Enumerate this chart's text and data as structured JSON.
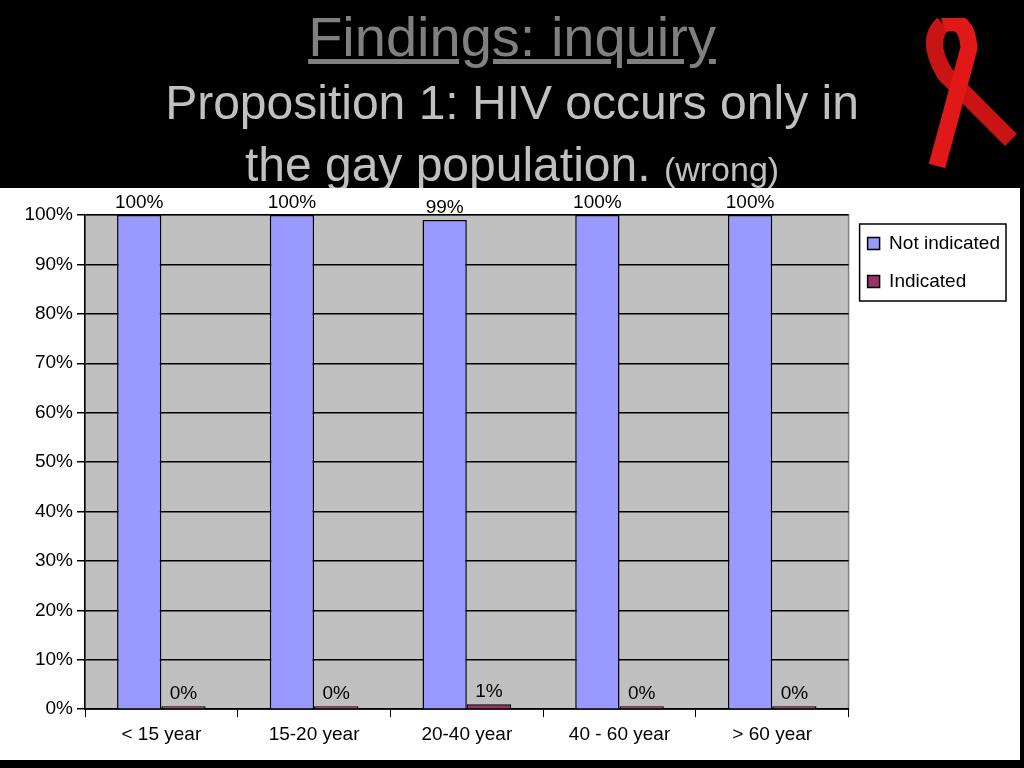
{
  "chart_data": {
    "type": "bar",
    "title": "Findings: inquiry",
    "subtitle": "Proposition 1: HIV occurs only in the gay population.",
    "annotations": [
      "(wrong)"
    ],
    "categories": [
      "< 15 year",
      "15-20 year",
      "20-40 year",
      "40 - 60 year",
      "> 60 year"
    ],
    "series": [
      {
        "name": "Not indicated",
        "color": "#9999ff",
        "values": [
          100,
          100,
          99,
          100,
          100
        ],
        "value_labels": [
          "100%",
          "100%",
          "99%",
          "100%",
          "100%"
        ]
      },
      {
        "name": "Indicated",
        "color": "#993366",
        "values": [
          0,
          0,
          1,
          0,
          0
        ],
        "value_labels": [
          "0%",
          "0%",
          "1%",
          "0%",
          "0%"
        ]
      }
    ],
    "ylim": [
      0,
      100
    ],
    "yticks": [
      {
        "value": 0,
        "label": "0%"
      },
      {
        "value": 10,
        "label": "10%"
      },
      {
        "value": 20,
        "label": "20%"
      },
      {
        "value": 30,
        "label": "30%"
      },
      {
        "value": 40,
        "label": "40%"
      },
      {
        "value": 50,
        "label": "50%"
      },
      {
        "value": 60,
        "label": "60%"
      },
      {
        "value": 70,
        "label": "70%"
      },
      {
        "value": 80,
        "label": "80%"
      },
      {
        "value": 90,
        "label": "90%"
      },
      {
        "value": 100,
        "label": "100%"
      }
    ],
    "grid": "y",
    "legend": "top right"
  }
}
